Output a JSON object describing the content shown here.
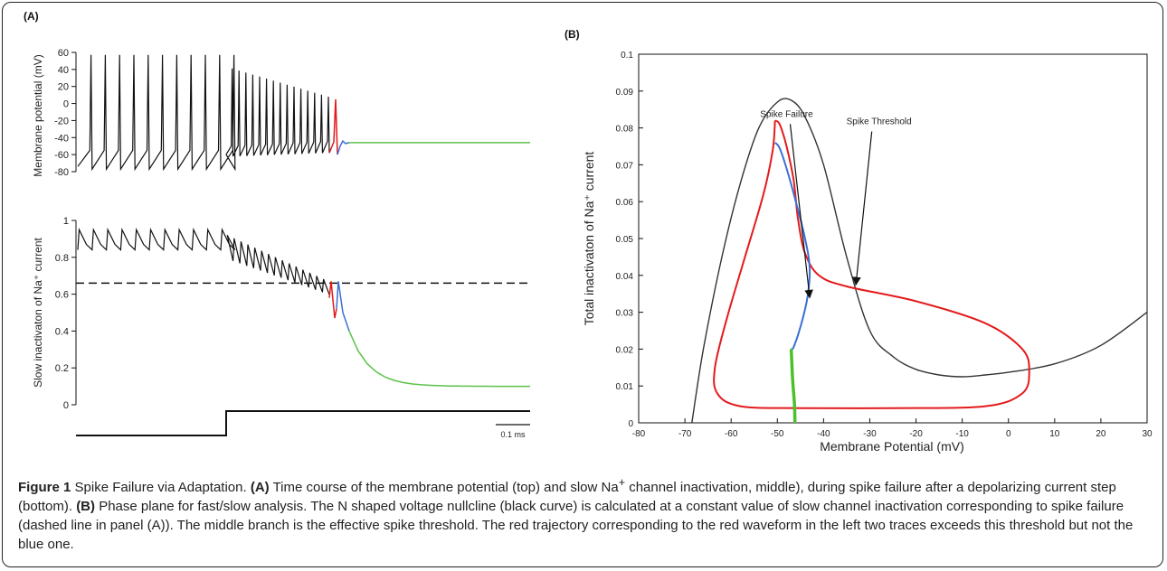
{
  "panels": {
    "a_label": "(A)",
    "b_label": "(B)"
  },
  "chart_data": [
    {
      "type": "line",
      "panel": "A-top",
      "ylabel": "Membrane potential (mV)",
      "yticks": [
        60,
        40,
        20,
        0,
        -20,
        -40,
        -60,
        -80
      ],
      "ylim": [
        -80,
        60
      ],
      "series": [
        {
          "color": "#111111",
          "description": "spike train: 11 full spikes to ~57 mV, then adapting spikes decaying from ~41 to ~8 mV"
        },
        {
          "color": "#e31a1c",
          "values_peak": 5
        },
        {
          "color": "#3b6fd4",
          "values_peak": -44
        },
        {
          "color": "#5cc24a",
          "values_level": -46
        }
      ]
    },
    {
      "type": "line",
      "panel": "A-middle",
      "ylabel": "Slow inactivaton of Na⁺ current",
      "yticks": [
        1,
        0.8,
        0.6,
        0.4,
        0.2,
        0
      ],
      "ylim": [
        0,
        1
      ],
      "dashed_threshold": 0.66,
      "series": [
        {
          "color": "#111111",
          "description": "oscillates 0.84–0.95 then declines to ~0.6"
        },
        {
          "color": "#e31a1c",
          "values_min": 0.47
        },
        {
          "color": "#3b6fd4"
        },
        {
          "color": "#5cc24a",
          "values_level": 0.1
        }
      ]
    },
    {
      "type": "line",
      "panel": "A-bottom",
      "scalebar_label": "0.1 ms",
      "series": [
        {
          "color": "#111111",
          "description": "current step"
        }
      ]
    },
    {
      "type": "line",
      "panel": "B",
      "xlabel": "Membrane Potential (mV)",
      "ylabel": "Total inactivaton of Na⁺ current",
      "xticks": [
        -80,
        -70,
        -60,
        -50,
        -40,
        -30,
        -20,
        -10,
        0,
        10,
        20,
        30
      ],
      "yticks": [
        0,
        0.01,
        0.02,
        0.03,
        0.04,
        0.05,
        0.06,
        0.07,
        0.08,
        0.09,
        0.1
      ],
      "xlim": [
        -80,
        30
      ],
      "ylim": [
        0,
        0.1
      ],
      "annotations": [
        {
          "text": "Spike Failure",
          "x": -48,
          "y": 0.083,
          "arrow_to": [
            -43,
            0.034
          ]
        },
        {
          "text": "Spike Threshold",
          "x": -28,
          "y": 0.081,
          "arrow_to": [
            -33,
            0.0375
          ]
        }
      ],
      "nullcline_points": [
        [
          -68.5,
          0
        ],
        [
          -66,
          0.02
        ],
        [
          -62,
          0.045
        ],
        [
          -58,
          0.065
        ],
        [
          -54,
          0.08
        ],
        [
          -50,
          0.087
        ],
        [
          -47,
          0.0875
        ],
        [
          -44,
          0.083
        ],
        [
          -40,
          0.07
        ],
        [
          -35,
          0.045
        ],
        [
          -30,
          0.025
        ],
        [
          -25,
          0.018
        ],
        [
          -20,
          0.0145
        ],
        [
          -15,
          0.013
        ],
        [
          -10,
          0.0125
        ],
        [
          -5,
          0.013
        ],
        [
          0,
          0.0137
        ],
        [
          10,
          0.016
        ],
        [
          20,
          0.021
        ],
        [
          30,
          0.03
        ]
      ],
      "red_points": [
        [
          -50.5,
          0.082
        ],
        [
          -49.5,
          0.081
        ],
        [
          -48,
          0.075
        ],
        [
          -46.5,
          0.066
        ],
        [
          -45.5,
          0.055
        ],
        [
          -44,
          0.046
        ],
        [
          -41,
          0.04
        ],
        [
          -35,
          0.037
        ],
        [
          -20,
          0.033
        ],
        [
          -5,
          0.027
        ],
        [
          3,
          0.02
        ],
        [
          4.5,
          0.014
        ],
        [
          3,
          0.008
        ],
        [
          -5,
          0.0045
        ],
        [
          -25,
          0.004
        ],
        [
          -45,
          0.004
        ],
        [
          -58,
          0.0045
        ],
        [
          -63,
          0.008
        ],
        [
          -63.5,
          0.015
        ],
        [
          -61,
          0.028
        ],
        [
          -57,
          0.045
        ],
        [
          -53,
          0.062
        ],
        [
          -51,
          0.074
        ],
        [
          -50.5,
          0.082
        ]
      ],
      "blue_points": [
        [
          -50.5,
          0.076
        ],
        [
          -49.5,
          0.0745
        ],
        [
          -48,
          0.069
        ],
        [
          -46,
          0.06
        ],
        [
          -44,
          0.05
        ],
        [
          -43,
          0.042
        ],
        [
          -43.5,
          0.034
        ],
        [
          -45,
          0.026
        ],
        [
          -46.5,
          0.0205
        ],
        [
          -47,
          0.02
        ]
      ],
      "green_points": [
        [
          -47,
          0.02
        ],
        [
          -46.7,
          0.012
        ],
        [
          -46.3,
          0.005
        ],
        [
          -46.2,
          0
        ]
      ]
    }
  ],
  "caption": {
    "figure_label": "Figure 1",
    "title": "Spike Failure via Adaptation.",
    "a_ref": "(A)",
    "a_text_1": "Time course of the membrane potential (top) and slow Na",
    "sup_plus": "+",
    "a_text_2": "channel inactivation, middle), during spike failure after a depolarizing current step (bottom).",
    "b_ref": "(B)",
    "b_text": "Phase plane for fast/slow analysis. The N shaped voltage nullcline (black curve) is calculated at a constant value of slow channel inactivation corresponding to spike failure (dashed line in panel (A)). The middle branch is the effective spike threshold. The red trajectory corresponding to the red waveform in the left two traces exceeds this threshold but not the blue one."
  }
}
